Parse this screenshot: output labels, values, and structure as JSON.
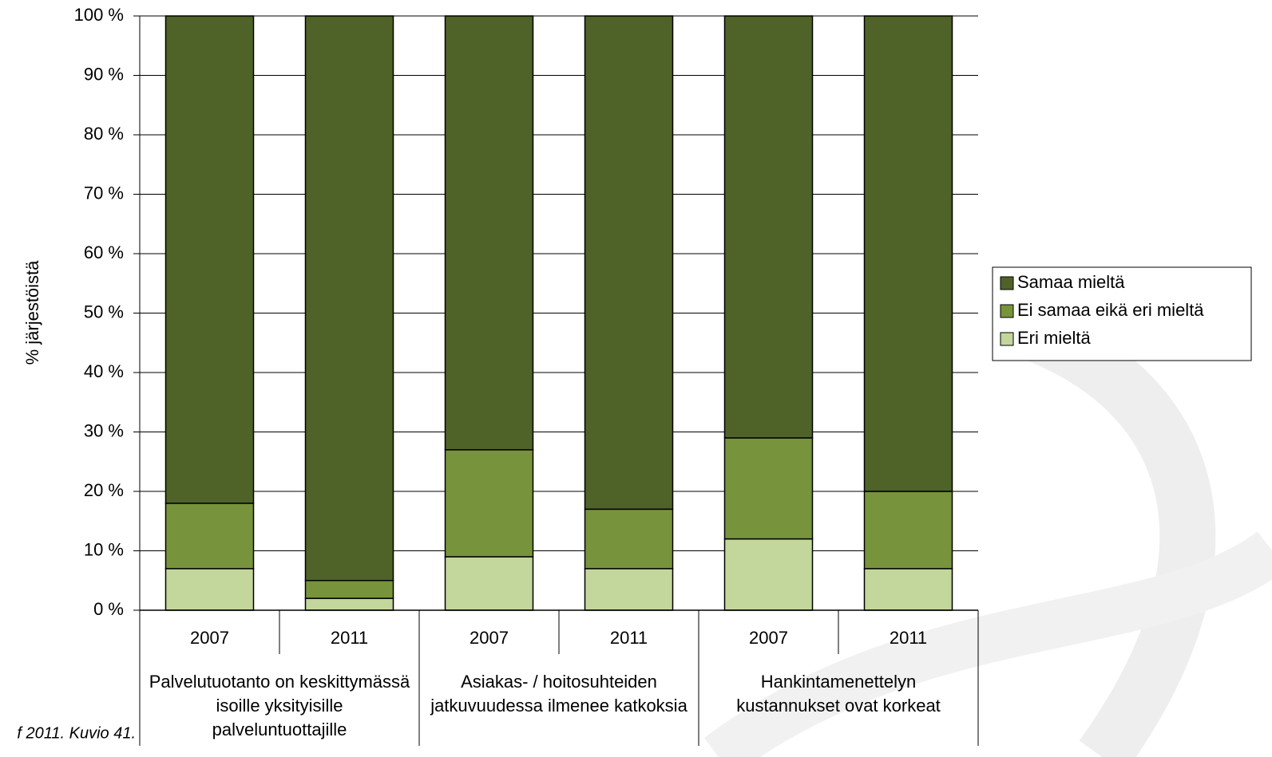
{
  "chart_data": {
    "type": "stacked_bar",
    "y_label": "% järjestöistä",
    "note": "f 2011. Kuvio 41.",
    "categories": [
      "2007",
      "2011",
      "2007",
      "2011",
      "2007",
      "2011"
    ],
    "groups": [
      "Palvelutuotanto on keskittymässä isoille yksityisille palveluntuottajille",
      "Asiakas- / hoitosuhteiden jatkuvuudessa ilmenee katkoksia",
      "Hankintamenettelyn kustannukset ovat korkeat"
    ],
    "series": [
      {
        "name": "Samaa mieltä",
        "color": "#4f6228",
        "values": [
          82,
          95,
          73,
          83,
          71,
          80
        ]
      },
      {
        "name": "Ei samaa eikä eri mieltä",
        "color": "#77933c",
        "values": [
          11,
          3,
          18,
          10,
          17,
          13
        ]
      },
      {
        "name": "Eri mieltä",
        "color": "#c3d69b",
        "values": [
          7,
          2,
          9,
          7,
          12,
          7
        ]
      }
    ],
    "ylim": [
      0,
      100
    ],
    "yticks": [
      {
        "value": 0,
        "label": "0 %"
      },
      {
        "value": 10,
        "label": "10 %"
      },
      {
        "value": 20,
        "label": "20 %"
      },
      {
        "value": 30,
        "label": "30 %"
      },
      {
        "value": 40,
        "label": "40 %"
      },
      {
        "value": 50,
        "label": "50 %"
      },
      {
        "value": 60,
        "label": "60 %"
      },
      {
        "value": 70,
        "label": "70 %"
      },
      {
        "value": 80,
        "label": "80 %"
      },
      {
        "value": 90,
        "label": "90 %"
      },
      {
        "value": 100,
        "label": "100 %"
      }
    ],
    "grid": true,
    "legend": "right"
  }
}
